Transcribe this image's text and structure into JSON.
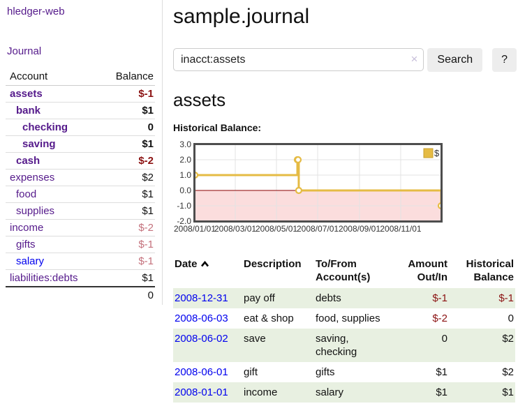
{
  "app": {
    "title": "hledger-web"
  },
  "sidebar": {
    "journal_label": "Journal",
    "table": {
      "headers": [
        "Account",
        "Balance"
      ],
      "rows": [
        {
          "account": "assets",
          "balance": "$-1",
          "level": 1,
          "bold": true,
          "account_color": "purple",
          "balance_color": "negative"
        },
        {
          "account": "bank",
          "balance": "$1",
          "level": 2,
          "bold": true,
          "account_color": "purple",
          "balance_color": "normal"
        },
        {
          "account": "checking",
          "balance": "0",
          "level": 3,
          "bold": true,
          "account_color": "purple",
          "balance_color": "normal"
        },
        {
          "account": "saving",
          "balance": "$1",
          "level": 3,
          "bold": true,
          "account_color": "purple",
          "balance_color": "normal"
        },
        {
          "account": "cash",
          "balance": "$-2",
          "level": 2,
          "bold": true,
          "account_color": "purple",
          "balance_color": "negative"
        },
        {
          "account": "expenses",
          "balance": "$2",
          "level": 1,
          "bold": false,
          "account_color": "purple",
          "balance_color": "normal"
        },
        {
          "account": "food",
          "balance": "$1",
          "level": 2,
          "bold": false,
          "account_color": "purple",
          "balance_color": "normal"
        },
        {
          "account": "supplies",
          "balance": "$1",
          "level": 2,
          "bold": false,
          "account_color": "purple",
          "balance_color": "normal"
        },
        {
          "account": "income",
          "balance": "$-2",
          "level": 1,
          "bold": false,
          "account_color": "purple",
          "balance_color": "negative-muted"
        },
        {
          "account": "gifts",
          "balance": "$-1",
          "level": 2,
          "bold": false,
          "account_color": "purple",
          "balance_color": "negative-muted"
        },
        {
          "account": "salary",
          "balance": "$-1",
          "level": 2,
          "bold": false,
          "account_color": "blue",
          "balance_color": "negative-muted"
        },
        {
          "account": "liabilities:debts",
          "balance": "$1",
          "level": 1,
          "bold": false,
          "account_color": "purple",
          "balance_color": "normal"
        }
      ],
      "total": "0"
    }
  },
  "main": {
    "title": "sample.journal",
    "search": {
      "value": "inacct:assets",
      "clear_icon": "×",
      "button_label": "Search",
      "help_label": "?"
    },
    "account_heading": "assets",
    "chart_heading": "Historical Balance:"
  },
  "chart_data": {
    "type": "line",
    "title": "Historical Balance:",
    "step": true,
    "series": [
      {
        "name": "$",
        "points": [
          {
            "date": "2008-01-01",
            "value": 1
          },
          {
            "date": "2008-06-01",
            "value": 2
          },
          {
            "date": "2008-06-02",
            "value": 2
          },
          {
            "date": "2008-06-03",
            "value": 0
          },
          {
            "date": "2008-12-31",
            "value": -1
          }
        ]
      }
    ],
    "xrange": [
      "2008-01-01",
      "2008-12-31"
    ],
    "ylim": [
      -2.0,
      3.0
    ],
    "yticks": [
      "3.0",
      "2.0",
      "1.0",
      "0.0",
      "-1.0",
      "-2.0"
    ],
    "xticks": [
      "2008/01/01",
      "2008/03/01",
      "2008/05/01",
      "2008/07/01",
      "2008/09/01",
      "2008/11/01"
    ],
    "grid": true,
    "legend": {
      "label": "$",
      "position": "top-right"
    },
    "line_color": "#e5bb44",
    "negative_fill": "#fbdddd",
    "zero_line_color": "#8b0000"
  },
  "register": {
    "headers": [
      "Date",
      "Description",
      "To/From Account(s)",
      "Amount Out/In",
      "Historical Balance"
    ],
    "rows": [
      {
        "date": "2008-12-31",
        "description": "pay off",
        "accounts": "debts",
        "amount": "$-1",
        "amount_color": "negative",
        "balance": "$-1",
        "balance_color": "negative"
      },
      {
        "date": "2008-06-03",
        "description": "eat & shop",
        "accounts": "food, supplies",
        "amount": "$-2",
        "amount_color": "negative",
        "balance": "0",
        "balance_color": "positive"
      },
      {
        "date": "2008-06-02",
        "description": "save",
        "accounts": "saving, checking",
        "amount": "0",
        "amount_color": "positive",
        "balance": "$2",
        "balance_color": "positive"
      },
      {
        "date": "2008-06-01",
        "description": "gift",
        "accounts": "gifts",
        "amount": "$1",
        "amount_color": "positive",
        "balance": "$2",
        "balance_color": "positive"
      },
      {
        "date": "2008-01-01",
        "description": "income",
        "accounts": "salary",
        "amount": "$1",
        "amount_color": "positive",
        "balance": "$1",
        "balance_color": "positive"
      }
    ]
  }
}
